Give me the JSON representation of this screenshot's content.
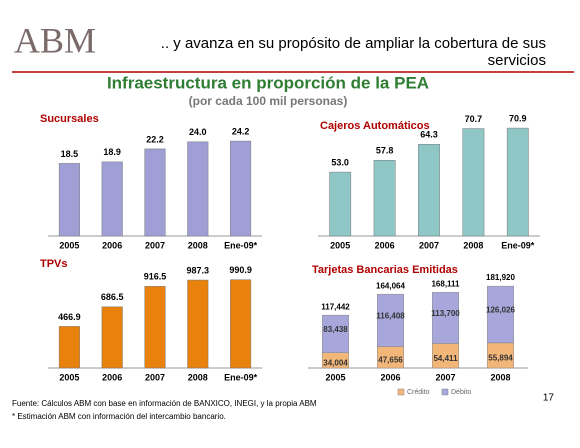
{
  "slide": {
    "logo": "ABM",
    "heading": [
      ".. y avanza en su propósito de ampliar la cobertura de sus",
      "servicios"
    ],
    "title": "Infraestructura en proporción de la PEA",
    "subtitle": "(por cada 100 mil personas)",
    "footnotes": [
      "Fuente: Cálculos ABM con base en información de BANXICO, INEGI, y la propia ABM",
      "* Estimación ABM con información del intercambio bancario."
    ],
    "page": 17
  },
  "chart_data": [
    {
      "type": "bar",
      "title": "Sucursales",
      "categories": [
        "2005",
        "2006",
        "2007",
        "2008",
        "Ene-09*"
      ],
      "values": [
        18.5,
        18.9,
        22.2,
        24.0,
        24.2
      ],
      "value_labels": [
        "18.5",
        "18.9",
        "22.2",
        "24.0",
        "24.2"
      ],
      "color": "#9f9fd6",
      "ylim": [
        0,
        26
      ]
    },
    {
      "type": "bar",
      "title": "Cajeros Automáticos",
      "categories": [
        "2005",
        "2006",
        "2007",
        "2008",
        "Ene-09*"
      ],
      "values": [
        53.0,
        57.8,
        64.3,
        70.7,
        70.9
      ],
      "value_labels": [
        "53.0",
        "57.8",
        "64.3",
        "70.7",
        "70.9"
      ],
      "color": "#8fc6c6",
      "ylim": [
        27,
        75
      ]
    },
    {
      "type": "bar",
      "title": "TPVs",
      "categories": [
        "2005",
        "2006",
        "2007",
        "2008",
        "Ene-09*"
      ],
      "values": [
        466.9,
        686.5,
        916.5,
        987.3,
        990.9
      ],
      "value_labels": [
        "466.9",
        "686.5",
        "916.5",
        "987.3",
        "990.9"
      ],
      "color": "#e8820c",
      "ylim": [
        0,
        1100
      ]
    },
    {
      "type": "stacked-bar",
      "title": "Tarjetas Bancarias Emitidas",
      "categories": [
        "2005",
        "2006",
        "2007",
        "2008"
      ],
      "series": [
        {
          "name": "Crédito",
          "color": "#f2b678",
          "values": [
            34004,
            47656,
            54411,
            55894
          ],
          "value_labels": [
            "34,004",
            "47,656",
            "54,411",
            "55,894"
          ]
        },
        {
          "name": "Débito",
          "color": "#a7a7db",
          "values": [
            83438,
            116408,
            113700,
            126026
          ],
          "value_labels": [
            "83,438",
            "116,408",
            "113,700",
            "126,026"
          ]
        }
      ],
      "totals": [
        117442,
        164064,
        168111,
        181920
      ],
      "total_labels": [
        "117,442",
        "164,064",
        "168,111",
        "181,920"
      ],
      "ylim": [
        0,
        200000
      ]
    }
  ]
}
